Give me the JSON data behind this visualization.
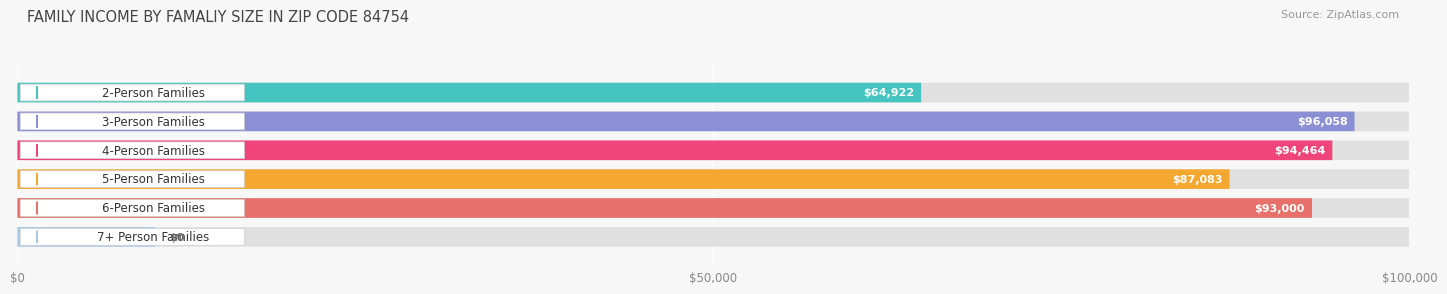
{
  "title": "FAMILY INCOME BY FAMALIY SIZE IN ZIP CODE 84754",
  "source": "Source: ZipAtlas.com",
  "categories": [
    "2-Person Families",
    "3-Person Families",
    "4-Person Families",
    "5-Person Families",
    "6-Person Families",
    "7+ Person Families"
  ],
  "values": [
    64922,
    96058,
    94464,
    87083,
    93000,
    0
  ],
  "bar_colors": [
    "#45c4c0",
    "#8b8fd4",
    "#f0457a",
    "#f5a830",
    "#e8706a",
    "#a8c8e8"
  ],
  "xlim": [
    0,
    100000
  ],
  "xticks": [
    0,
    50000,
    100000
  ],
  "xtick_labels": [
    "$0",
    "$50,000",
    "$100,000"
  ],
  "value_labels": [
    "$64,922",
    "$96,058",
    "$94,464",
    "$87,083",
    "$93,000",
    "$0"
  ],
  "background_color": "#f7f7f7",
  "track_color": "#e0e0e0",
  "label_box_color": "#ffffff",
  "title_fontsize": 10.5,
  "source_fontsize": 8,
  "bar_label_fontsize": 8.5,
  "value_label_fontsize": 8,
  "tick_fontsize": 8.5
}
